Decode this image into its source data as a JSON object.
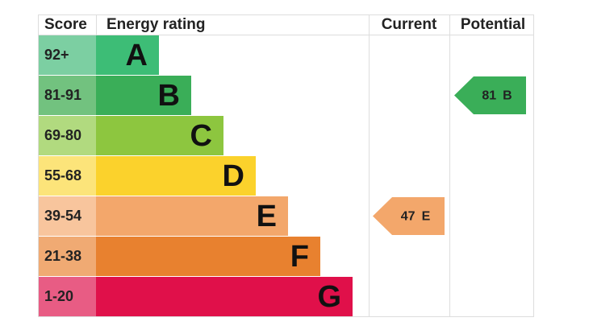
{
  "header": {
    "score": "Score",
    "rating": "Energy rating",
    "current": "Current",
    "potential": "Potential"
  },
  "bands": [
    {
      "score": "92+",
      "letter": "A",
      "color": "#3dbd76",
      "light": "#7ccfa2"
    },
    {
      "score": "81-91",
      "letter": "B",
      "color": "#3aae58",
      "light": "#72c27f"
    },
    {
      "score": "69-80",
      "letter": "C",
      "color": "#8dc63f",
      "light": "#b1da7f"
    },
    {
      "score": "55-68",
      "letter": "D",
      "color": "#fbd22c",
      "light": "#fce47a"
    },
    {
      "score": "39-54",
      "letter": "E",
      "color": "#f3a76b",
      "light": "#f8c59d"
    },
    {
      "score": "21-38",
      "letter": "F",
      "color": "#e8812f",
      "light": "#f0aa73"
    },
    {
      "score": "1-20",
      "letter": "G",
      "color": "#e0104a",
      "light": "#e85c84"
    }
  ],
  "current": {
    "value": 47,
    "letter": "E"
  },
  "potential": {
    "value": 81,
    "letter": "B"
  }
}
